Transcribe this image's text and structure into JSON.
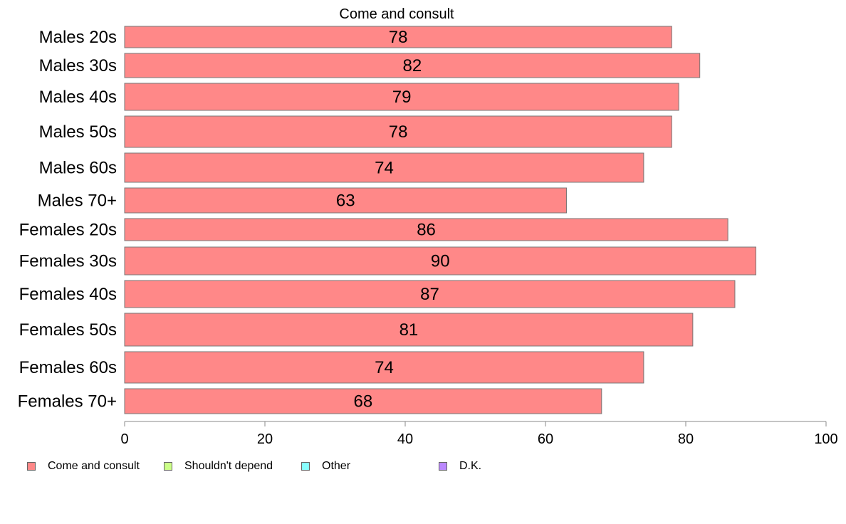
{
  "chart_data": {
    "type": "bar",
    "orientation": "horizontal",
    "title": "Come and consult",
    "categories": [
      "Males 20s",
      "Males 30s",
      "Males 40s",
      "Males 50s",
      "Males 60s",
      "Males 70+",
      "Females 20s",
      "Females 30s",
      "Females 40s",
      "Females 50s",
      "Females 60s",
      "Females 70+"
    ],
    "series": [
      {
        "name": "Come and consult",
        "color": "#FF8888",
        "values": [
          78,
          82,
          79,
          78,
          74,
          63,
          86,
          90,
          87,
          81,
          74,
          68
        ]
      }
    ],
    "xlim": [
      0,
      100
    ],
    "xticks": [
      0,
      20,
      40,
      60,
      80,
      100
    ],
    "grid": false,
    "legend": {
      "placement": "bottom",
      "entries": [
        {
          "label": "Come and consult",
          "color": "#FF8888"
        },
        {
          "label": "Shouldn't depend",
          "color": "#CCFF88"
        },
        {
          "label": "Other",
          "color": "#88FFFF"
        },
        {
          "label": "D.K.",
          "color": "#BB88FF"
        }
      ]
    }
  }
}
